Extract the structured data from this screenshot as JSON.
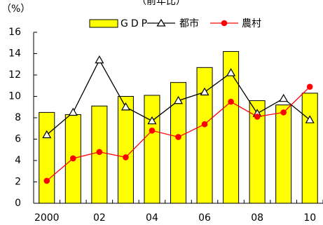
{
  "chart_data": {
    "type": "bar",
    "title": "（前年比）",
    "ylabel": "（%）",
    "xlabel": "",
    "ylim": [
      0,
      16
    ],
    "yticks": [
      0,
      2,
      4,
      6,
      8,
      10,
      12,
      14,
      16
    ],
    "x": [
      2000,
      2001,
      2002,
      2003,
      2004,
      2005,
      2006,
      2007,
      2008,
      2009,
      2010
    ],
    "xtick_labels": [
      {
        "x": 2000,
        "label": "2000"
      },
      {
        "x": 2002,
        "label": "02"
      },
      {
        "x": 2004,
        "label": "04"
      },
      {
        "x": 2006,
        "label": "06"
      },
      {
        "x": 2008,
        "label": "08"
      },
      {
        "x": 2010,
        "label": "10"
      }
    ],
    "legend_position": "top",
    "series": [
      {
        "name": "GDP",
        "type": "bar",
        "color": "#ffff00",
        "values": [
          8.5,
          8.3,
          9.1,
          10.0,
          10.1,
          11.3,
          12.7,
          14.2,
          9.6,
          9.2,
          10.3
        ]
      },
      {
        "name": "都市",
        "type": "line",
        "marker": "triangle-open",
        "color": "#000000",
        "values": [
          6.4,
          8.5,
          13.4,
          9.0,
          7.7,
          9.6,
          10.4,
          12.2,
          8.4,
          9.8,
          7.8
        ]
      },
      {
        "name": "農村",
        "type": "line",
        "marker": "circle-filled",
        "color": "#ff0000",
        "values": [
          2.1,
          4.2,
          4.8,
          4.3,
          6.8,
          6.2,
          7.4,
          9.5,
          8.1,
          8.5,
          10.9
        ]
      }
    ]
  }
}
